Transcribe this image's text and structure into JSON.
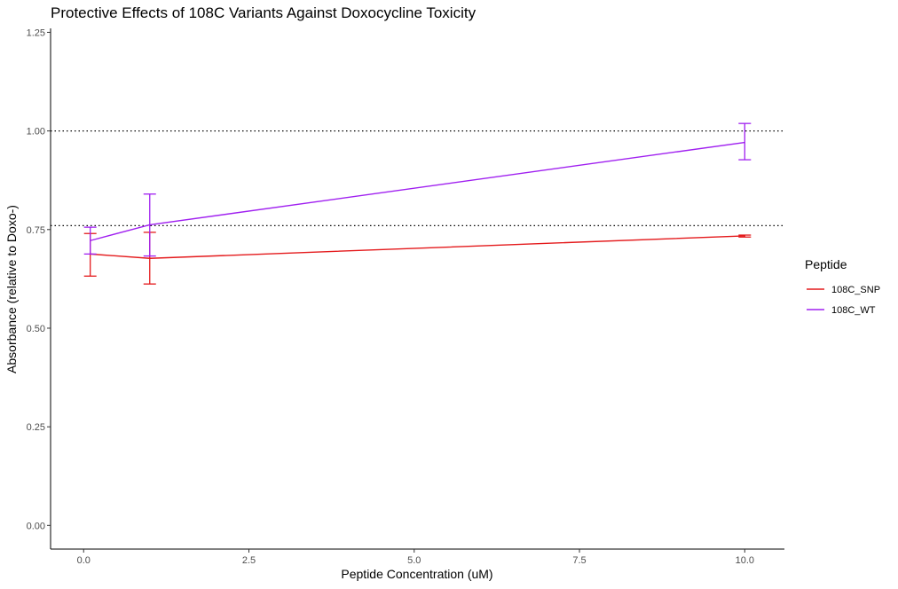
{
  "chart_data": {
    "type": "line",
    "title": "Protective Effects of 108C Variants Against Doxocycline Toxicity",
    "xlabel": "Peptide Concentration (uM)",
    "ylabel": "Absorbance (relative to Doxo-)",
    "xlim": [
      -0.5,
      10.6
    ],
    "ylim": [
      -0.06,
      1.26
    ],
    "x_ticks": [
      0.0,
      2.5,
      5.0,
      7.5,
      10.0
    ],
    "x_tick_labels": [
      "0.0",
      "2.5",
      "5.0",
      "7.5",
      "10.0"
    ],
    "y_ticks": [
      0.0,
      0.25,
      0.5,
      0.75,
      1.0,
      1.25
    ],
    "y_tick_labels": [
      "0.00",
      "0.25",
      "0.50",
      "0.75",
      "1.00",
      "1.25"
    ],
    "reference_lines": [
      1.0,
      0.76
    ],
    "grid": false,
    "legend": {
      "title": "Peptide",
      "position": "right"
    },
    "series": [
      {
        "name": "108C_SNP",
        "color": "#e41a1c",
        "x": [
          0.1,
          1.0,
          10.0
        ],
        "y": [
          0.688,
          0.677,
          0.734
        ],
        "err_low": [
          0.632,
          0.612,
          0.731
        ],
        "err_high": [
          0.74,
          0.743,
          0.736
        ]
      },
      {
        "name": "108C_WT",
        "color": "#a020f0",
        "x": [
          0.1,
          1.0,
          10.0
        ],
        "y": [
          0.722,
          0.762,
          0.971
        ],
        "err_low": [
          0.688,
          0.683,
          0.927
        ],
        "err_high": [
          0.756,
          0.84,
          1.019
        ]
      }
    ]
  }
}
